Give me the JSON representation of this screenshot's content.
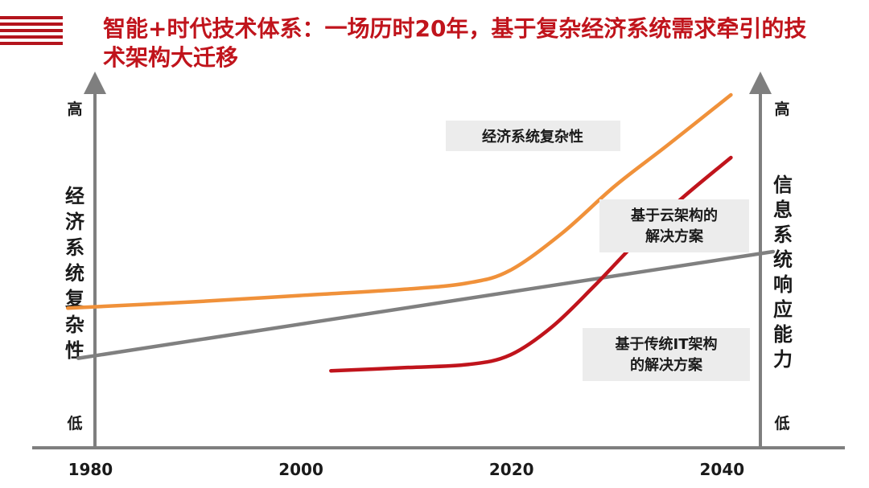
{
  "header": {
    "title": "智能+时代技术体系：一场历时20年，基于复杂经济系统需求牵引的技术架构大迁移"
  },
  "colors": {
    "brand": "#c0141c",
    "economy": "#f0913a",
    "cloud": "#c0141c",
    "traditional": "#808080",
    "axis": "#7f7f7f",
    "annotation_bg": "#ececec"
  },
  "chart_data": {
    "type": "line",
    "title": "智能+时代技术体系：一场历时20年，基于复杂经济系统需求牵引的技术架构大迁移",
    "x_ticks": [
      1980,
      2000,
      2020,
      2040
    ],
    "xlim": [
      1975,
      2048
    ],
    "left_axis": {
      "label": "经济系统复杂性",
      "high": "高",
      "low": "低"
    },
    "right_axis": {
      "label": "信息系统响应能力",
      "high": "高",
      "low": "低"
    },
    "ylim": [
      0,
      100
    ],
    "series": [
      {
        "name": "经济系统复杂性",
        "color": "#f0913a",
        "x": [
          1978,
          1990,
          2000,
          2010,
          2016,
          2020,
          2025,
          2030,
          2035,
          2041
        ],
        "y": [
          32,
          34,
          36,
          38,
          40,
          44,
          56,
          71,
          84,
          100
        ]
      },
      {
        "name": "基于云架构的解决方案",
        "color": "#c0141c",
        "x": [
          2003,
          2010,
          2016,
          2020,
          2024,
          2028,
          2032,
          2036,
          2041
        ],
        "y": [
          12,
          13,
          14,
          17,
          26,
          39,
          53,
          66,
          80
        ]
      },
      {
        "name": "基于传统IT架构的解决方案",
        "color": "#808080",
        "x": [
          1979,
          2045
        ],
        "y": [
          16,
          50
        ]
      }
    ],
    "annotations": [
      {
        "text": "经济系统复杂性",
        "series": "经济系统复杂性"
      },
      {
        "text": "基于云架构的\n解决方案",
        "series": "基于云架构的解决方案"
      },
      {
        "text": "基于传统IT架构\n的解决方案",
        "series": "基于传统IT架构的解决方案"
      }
    ],
    "legend": "none",
    "grid": false
  }
}
